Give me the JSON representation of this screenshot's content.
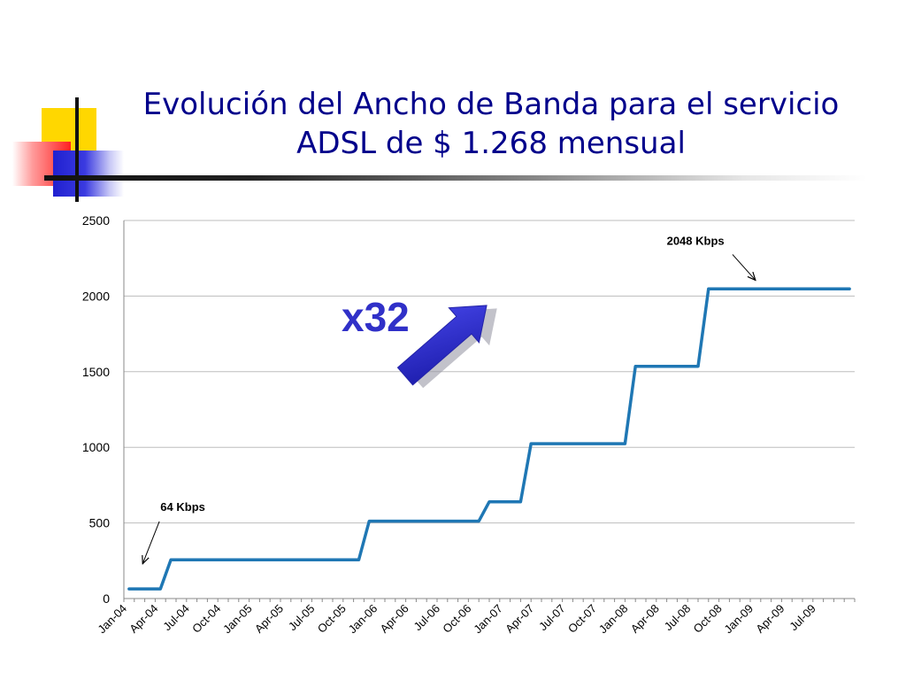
{
  "chart_data": {
    "type": "line",
    "title_lines": [
      "Evolución del Ancho de Banda para el servicio",
      "ADSL de $ 1.268 mensual"
    ],
    "xlabel": "",
    "ylabel": "",
    "ylim": [
      0,
      2500
    ],
    "yticks": [
      "0",
      "500",
      "1000",
      "1500",
      "2000",
      "2500"
    ],
    "ytick_values": [
      0,
      500,
      1000,
      1500,
      2000,
      2500
    ],
    "xlim": [
      0,
      70
    ],
    "x_tick_labels": [
      "Jan-04",
      "Apr-04",
      "Jul-04",
      "Oct-04",
      "Jan-05",
      "Apr-05",
      "Jul-05",
      "Oct-05",
      "Jan-06",
      "Apr-06",
      "Jul-06",
      "Oct-06",
      "Jan-07",
      "Apr-07",
      "Jul-07",
      "Oct-07",
      "Jan-08",
      "Apr-08",
      "Jul-08",
      "Oct-08",
      "Jan-09",
      "Apr-09",
      "Jul-09"
    ],
    "x_tick_months": [
      0,
      3,
      6,
      9,
      12,
      15,
      18,
      21,
      24,
      27,
      30,
      33,
      36,
      39,
      42,
      45,
      48,
      51,
      54,
      57,
      60,
      63,
      66
    ],
    "grid": true,
    "series": [
      {
        "color": "#1f77b4",
        "points": [
          [
            0.5,
            64
          ],
          [
            3.5,
            64
          ],
          [
            4.5,
            256
          ],
          [
            22.5,
            256
          ],
          [
            23.5,
            512
          ],
          [
            34,
            512
          ],
          [
            35,
            640
          ],
          [
            38,
            640
          ],
          [
            39,
            1024
          ],
          [
            48,
            1024
          ],
          [
            49,
            1536
          ],
          [
            55,
            1536
          ],
          [
            56,
            2048
          ],
          [
            69.5,
            2048
          ]
        ]
      }
    ],
    "annotations": [
      {
        "text": "64 Kbps",
        "label_x": 3.5,
        "label_y": 580,
        "arrow_from": [
          3.4,
          510
        ],
        "arrow_to": [
          1.8,
          230
        ]
      },
      {
        "text": "2048 Kbps",
        "label_x": 52,
        "label_y": 2340,
        "arrow_from": [
          58.3,
          2275
        ],
        "arrow_to": [
          60.5,
          2105
        ]
      }
    ],
    "multiplier": {
      "text": "x32",
      "color": "#3030c8"
    }
  }
}
